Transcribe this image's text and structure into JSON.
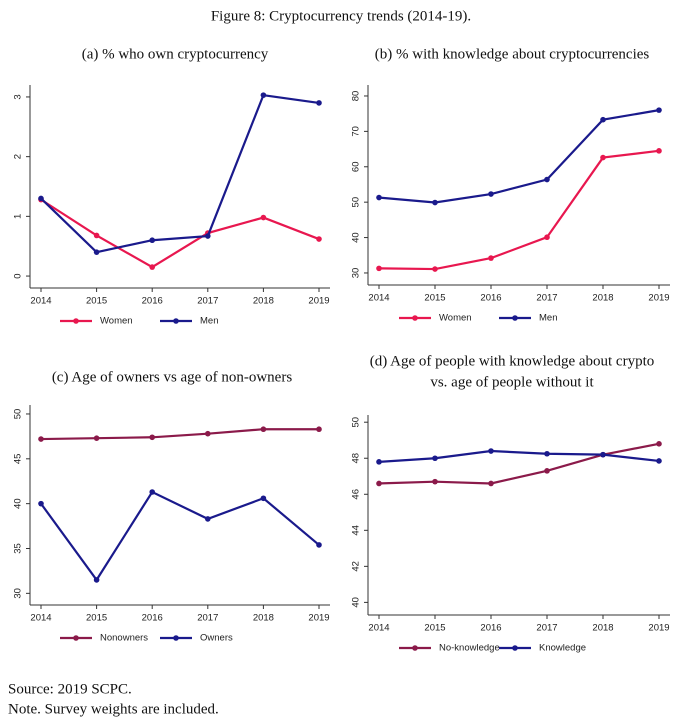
{
  "title": "Figure 8: Cryptocurrency trends (2014-19).",
  "chart_data": [
    {
      "type": "line",
      "title": "(a) % who own cryptocurrency",
      "categories": [
        "2014",
        "2015",
        "2016",
        "2017",
        "2018",
        "2019"
      ],
      "series": [
        {
          "name": "Women",
          "color": "#e8174f",
          "values": [
            1.28,
            0.68,
            0.15,
            0.72,
            0.98,
            0.62
          ]
        },
        {
          "name": "Men",
          "color": "#1a1a8c",
          "values": [
            1.3,
            0.4,
            0.6,
            0.67,
            3.03,
            2.9
          ]
        }
      ],
      "ylim": [
        -0.2,
        3.2
      ],
      "yticks": [
        0,
        1,
        2,
        3
      ]
    },
    {
      "type": "line",
      "title": "(b) % with knowledge about cryptocurrencies",
      "categories": [
        "2014",
        "2015",
        "2016",
        "2017",
        "2018",
        "2019"
      ],
      "series": [
        {
          "name": "Women",
          "color": "#e8174f",
          "values": [
            31.3,
            31.1,
            34.2,
            40.1,
            62.6,
            64.5
          ]
        },
        {
          "name": "Men",
          "color": "#1a1a8c",
          "values": [
            51.3,
            49.9,
            52.3,
            56.4,
            73.3,
            76
          ]
        }
      ],
      "ylim": [
        26.6,
        83.1
      ],
      "yticks": [
        30,
        40,
        50,
        60,
        70,
        80
      ]
    },
    {
      "type": "line",
      "title": "(c) Age of owners vs age of non-owners",
      "categories": [
        "2014",
        "2015",
        "2016",
        "2017",
        "2018",
        "2019"
      ],
      "series": [
        {
          "name": "Nonowners",
          "color": "#8b1a4a",
          "values": [
            47.2,
            47.3,
            47.4,
            47.8,
            48.3,
            48.3
          ]
        },
        {
          "name": "Owners",
          "color": "#1a1a8c",
          "values": [
            40,
            31.5,
            41.3,
            38.3,
            40.6,
            35.4
          ]
        }
      ],
      "ylim": [
        28.7,
        51
      ],
      "yticks": [
        30,
        35,
        40,
        45,
        50
      ]
    },
    {
      "type": "line",
      "title": [
        "(d) Age of people with knowledge about crypto",
        "vs. age of people without it"
      ],
      "categories": [
        "2014",
        "2015",
        "2016",
        "2017",
        "2018",
        "2019"
      ],
      "series": [
        {
          "name": "No-knowledge",
          "color": "#8b1a4a",
          "values": [
            46.6,
            46.7,
            46.6,
            47.3,
            48.2,
            48.8
          ]
        },
        {
          "name": "Knowledge",
          "color": "#1a1a8c",
          "values": [
            47.8,
            48.0,
            48.4,
            48.25,
            48.2,
            47.85
          ]
        }
      ],
      "ylim": [
        39.3,
        50.4
      ],
      "yticks": [
        40,
        42,
        44,
        46,
        48,
        50
      ]
    }
  ],
  "notes": [
    "Source: 2019 SCPC.",
    "Note. Survey weights are included."
  ]
}
